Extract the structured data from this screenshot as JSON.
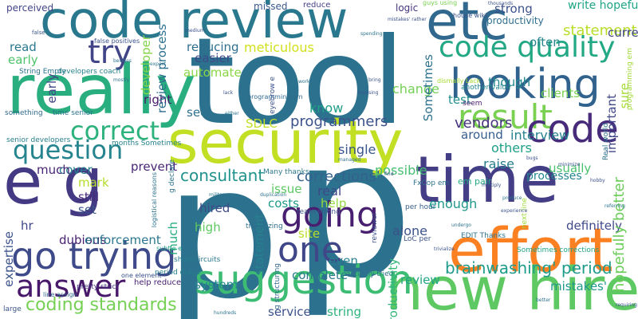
{
  "words": [
    {
      "text": "tool",
      "color": "#2c728e"
    },
    {
      "text": "p",
      "color": "#2c728e"
    },
    {
      "text": "p",
      "color": "#2c728e"
    },
    {
      "text": "security",
      "color": "#c2df23"
    },
    {
      "text": "really",
      "color": "#29af7f"
    },
    {
      "text": "code review",
      "color": "#2a788e"
    },
    {
      "text": "etc",
      "color": "#31688e"
    },
    {
      "text": "time",
      "color": "#433e85"
    },
    {
      "text": "effort",
      "color": "#fb8022"
    },
    {
      "text": "new hires",
      "color": "#5ec962"
    },
    {
      "text": "e g",
      "color": "#443983"
    },
    {
      "text": "looking",
      "color": "#30628d"
    },
    {
      "text": "result",
      "color": "#7ad151"
    },
    {
      "text": "code quality",
      "color": "#22a884"
    },
    {
      "text": "try",
      "color": "#414487"
    },
    {
      "text": "suggestion",
      "color": "#3dbc74"
    },
    {
      "text": "code",
      "color": "#472a7a"
    },
    {
      "text": "going",
      "color": "#481f70"
    },
    {
      "text": "go trying",
      "color": "#3e4a89"
    },
    {
      "text": "answer",
      "color": "#48186a"
    },
    {
      "text": "one",
      "color": "#3f4788"
    },
    {
      "text": "correct",
      "color": "#2db27d"
    },
    {
      "text": "question",
      "color": "#25848e"
    },
    {
      "text": "brainwashing' period",
      "color": "#1e9b8a"
    },
    {
      "text": "coding standards",
      "color": "#75d054"
    },
    {
      "text": "consultant",
      "color": "#21918c"
    },
    {
      "text": "corrections'",
      "color": "#34618d"
    },
    {
      "text": "programmers",
      "color": "#3b528b"
    },
    {
      "text": "vendors",
      "color": "#46337e"
    },
    {
      "text": "interview",
      "color": "#26828e"
    },
    {
      "text": "others",
      "color": "#1fa088"
    },
    {
      "text": "meticulous",
      "color": "#d0e11c"
    },
    {
      "text": "strong",
      "color": "#3b518b"
    },
    {
      "text": "reducing",
      "color": "#2e6f8e"
    },
    {
      "text": "easier",
      "color": "#3e4989"
    },
    {
      "text": "automate",
      "color": "#8bd646"
    },
    {
      "text": "change",
      "color": "#73d056"
    },
    {
      "text": "read",
      "color": "#2a788e"
    },
    {
      "text": "early",
      "color": "#4ec36b"
    },
    {
      "text": "know",
      "color": "#404588"
    },
    {
      "text": "right",
      "color": "#1fa088"
    },
    {
      "text": "see",
      "color": "#481a6c"
    },
    {
      "text": "SDLC",
      "color": "#2d718e"
    },
    {
      "text": "around",
      "color": "#c0df25"
    },
    {
      "text": "raise",
      "color": "#365d8d"
    },
    {
      "text": "usually",
      "color": "#287d8e"
    },
    {
      "text": "possible",
      "color": "#4ac16d"
    },
    {
      "text": "single",
      "color": "#44bf70"
    },
    {
      "text": "real",
      "color": "#39568c"
    },
    {
      "text": "issue",
      "color": "#3e4989"
    },
    {
      "text": "help",
      "color": "#5cc863"
    },
    {
      "text": "costs",
      "color": "#95d840"
    },
    {
      "text": "site",
      "color": "#1f9a8a"
    },
    {
      "text": "enough",
      "color": "#bade28"
    },
    {
      "text": "alone",
      "color": "#1f978b"
    },
    {
      "text": "hired",
      "color": "#3b528b"
    },
    {
      "text": "high",
      "color": "#3e4a89"
    },
    {
      "text": "still",
      "color": "#5ec962"
    },
    {
      "text": "set",
      "color": "#482878"
    },
    {
      "text": "mark",
      "color": "#3a548c"
    },
    {
      "text": "cover",
      "color": "#29af7f"
    },
    {
      "text": "much",
      "color": "#b5de2b"
    },
    {
      "text": "prevent",
      "color": "#26828e"
    },
    {
      "text": "hr",
      "color": "#482576"
    },
    {
      "text": "dubious",
      "color": "#482576"
    },
    {
      "text": "enforcement",
      "color": "#3f4788"
    },
    {
      "text": "even",
      "color": "#482071"
    },
    {
      "text": "complete",
      "color": "#2a778e"
    },
    {
      "text": "system",
      "color": "#27808e"
    },
    {
      "text": "review",
      "color": "#2a788e"
    },
    {
      "text": "mistakes'",
      "color": "#24878e"
    },
    {
      "text": "definitely",
      "color": "#21a585"
    },
    {
      "text": "service",
      "color": "#1f998a"
    },
    {
      "text": "string",
      "color": "#3f4889"
    },
    {
      "text": "missed",
      "color": "#3b528b"
    },
    {
      "text": "reduce",
      "color": "#2db27d"
    },
    {
      "text": "logic",
      "color": "#35b779"
    },
    {
      "text": "productivity",
      "color": "#26828e"
    },
    {
      "text": "statement",
      "color": "#38588c"
    },
    {
      "text": "write hopefully",
      "color": "#433e85"
    },
    {
      "text": "current job",
      "color": "#46337e"
    },
    {
      "text": "often",
      "color": "#2e6e8e"
    },
    {
      "text": "though",
      "color": "#b8de29"
    },
    {
      "text": "clients",
      "color": "#20a486"
    },
    {
      "text": "test",
      "color": "#404688"
    },
    {
      "text": "seem",
      "color": "#25858e"
    },
    {
      "text": "important",
      "color": "#23898e"
    },
    {
      "text": "sure",
      "color": "#7ad151"
    },
    {
      "text": "processes",
      "color": "#228d8d"
    },
    {
      "text": "hopefully better",
      "color": "#481b6d"
    },
    {
      "text": "perceived",
      "color": "#3f4788"
    },
    {
      "text": "something",
      "color": "#a5db36"
    },
    {
      "text": "time senior",
      "color": "#24868e"
    },
    {
      "text": "expertise",
      "color": "#6ccd5a"
    },
    {
      "text": "senior developers",
      "color": "#414487"
    },
    {
      "text": "String Empty",
      "color": "#31688e"
    },
    {
      "text": "developers coach",
      "color": "#2c728e"
    },
    {
      "text": "developer",
      "color": "#3b528b"
    },
    {
      "text": "review process",
      "color": "#277f8e"
    },
    {
      "text": "em pair",
      "color": "#2c728e"
    },
    {
      "text": "next line",
      "color": "#26818e"
    },
    {
      "text": "pretty strict",
      "color": "#84d44b"
    },
    {
      "text": "large",
      "color": "#2d708e"
    },
    {
      "text": "short circuits",
      "color": "#23a983"
    },
    {
      "text": "trivializing",
      "color": "#9fda3a"
    },
    {
      "text": "period drags",
      "color": "#453781"
    },
    {
      "text": "EDIT Thanks",
      "color": "#3a538b"
    },
    {
      "text": "LoC per",
      "color": "#297b8e"
    },
    {
      "text": "FxCop em",
      "color": "#2e6e8e"
    },
    {
      "text": "per hour",
      "color": "#277e8e"
    },
    {
      "text": "another value",
      "color": "#2c728e"
    },
    {
      "text": "guys using",
      "color": "#3b528b"
    },
    {
      "text": "house wiki",
      "color": "#2c728e"
    },
    {
      "text": "dismally Lack",
      "color": "#355f8d"
    },
    {
      "text": "team strong",
      "color": "#24868e"
    },
    {
      "text": "Many thanks",
      "color": "#7ad151"
    },
    {
      "text": "actually tried",
      "color": "#3b528b"
    },
    {
      "text": "Sometimes corrections",
      "color": "#a8db34"
    },
    {
      "text": "months Sometimes",
      "color": "#3b528b"
    },
    {
      "text": "g declare",
      "color": "#2a788e"
    },
    {
      "text": "subtle e",
      "color": "#2c728e"
    },
    {
      "text": "one element",
      "color": "#20a486"
    },
    {
      "text": "help reduce",
      "color": "#26828e"
    },
    {
      "text": "line assign",
      "color": "#2c728e"
    },
    {
      "text": "Real world",
      "color": "#1f9e89"
    },
    {
      "text": "programming em",
      "color": "#3b528b"
    },
    {
      "text": "eyebrow e",
      "color": "#482071"
    },
    {
      "text": "guys drilling",
      "color": "#31688e"
    },
    {
      "text": "false positives",
      "color": "#2c728e"
    },
    {
      "text": "logistical reasons",
      "color": "#a0da39"
    },
    {
      "text": "g structuring",
      "color": "#3b528b"
    },
    {
      "text": "reviewer",
      "color": "#31688e"
    },
    {
      "text": "someone correct",
      "color": "#3b528b"
    },
    {
      "text": "tried maintaining",
      "color": "#2c728e"
    },
    {
      "text": "normally halves",
      "color": "#31688e"
    },
    {
      "text": "hires assimilated",
      "color": "#3b528b"
    }
  ],
  "minor_words": [
    "false",
    "thousands",
    "mistakes' rather",
    "spending",
    "licensing",
    "bring",
    "working",
    "besides",
    "mostly",
    "expect",
    "enough",
    "managed",
    "find",
    "lack",
    "either",
    "military",
    "duplication",
    "hobby",
    "requiring",
    "minimize",
    "produce",
    "trivialize",
    "undergo",
    "experience",
    "multiply",
    "referring",
    "bugs",
    "better",
    "hundreds",
    "quarter",
    "basic",
    "reasons",
    "tell",
    "medium"
  ]
}
